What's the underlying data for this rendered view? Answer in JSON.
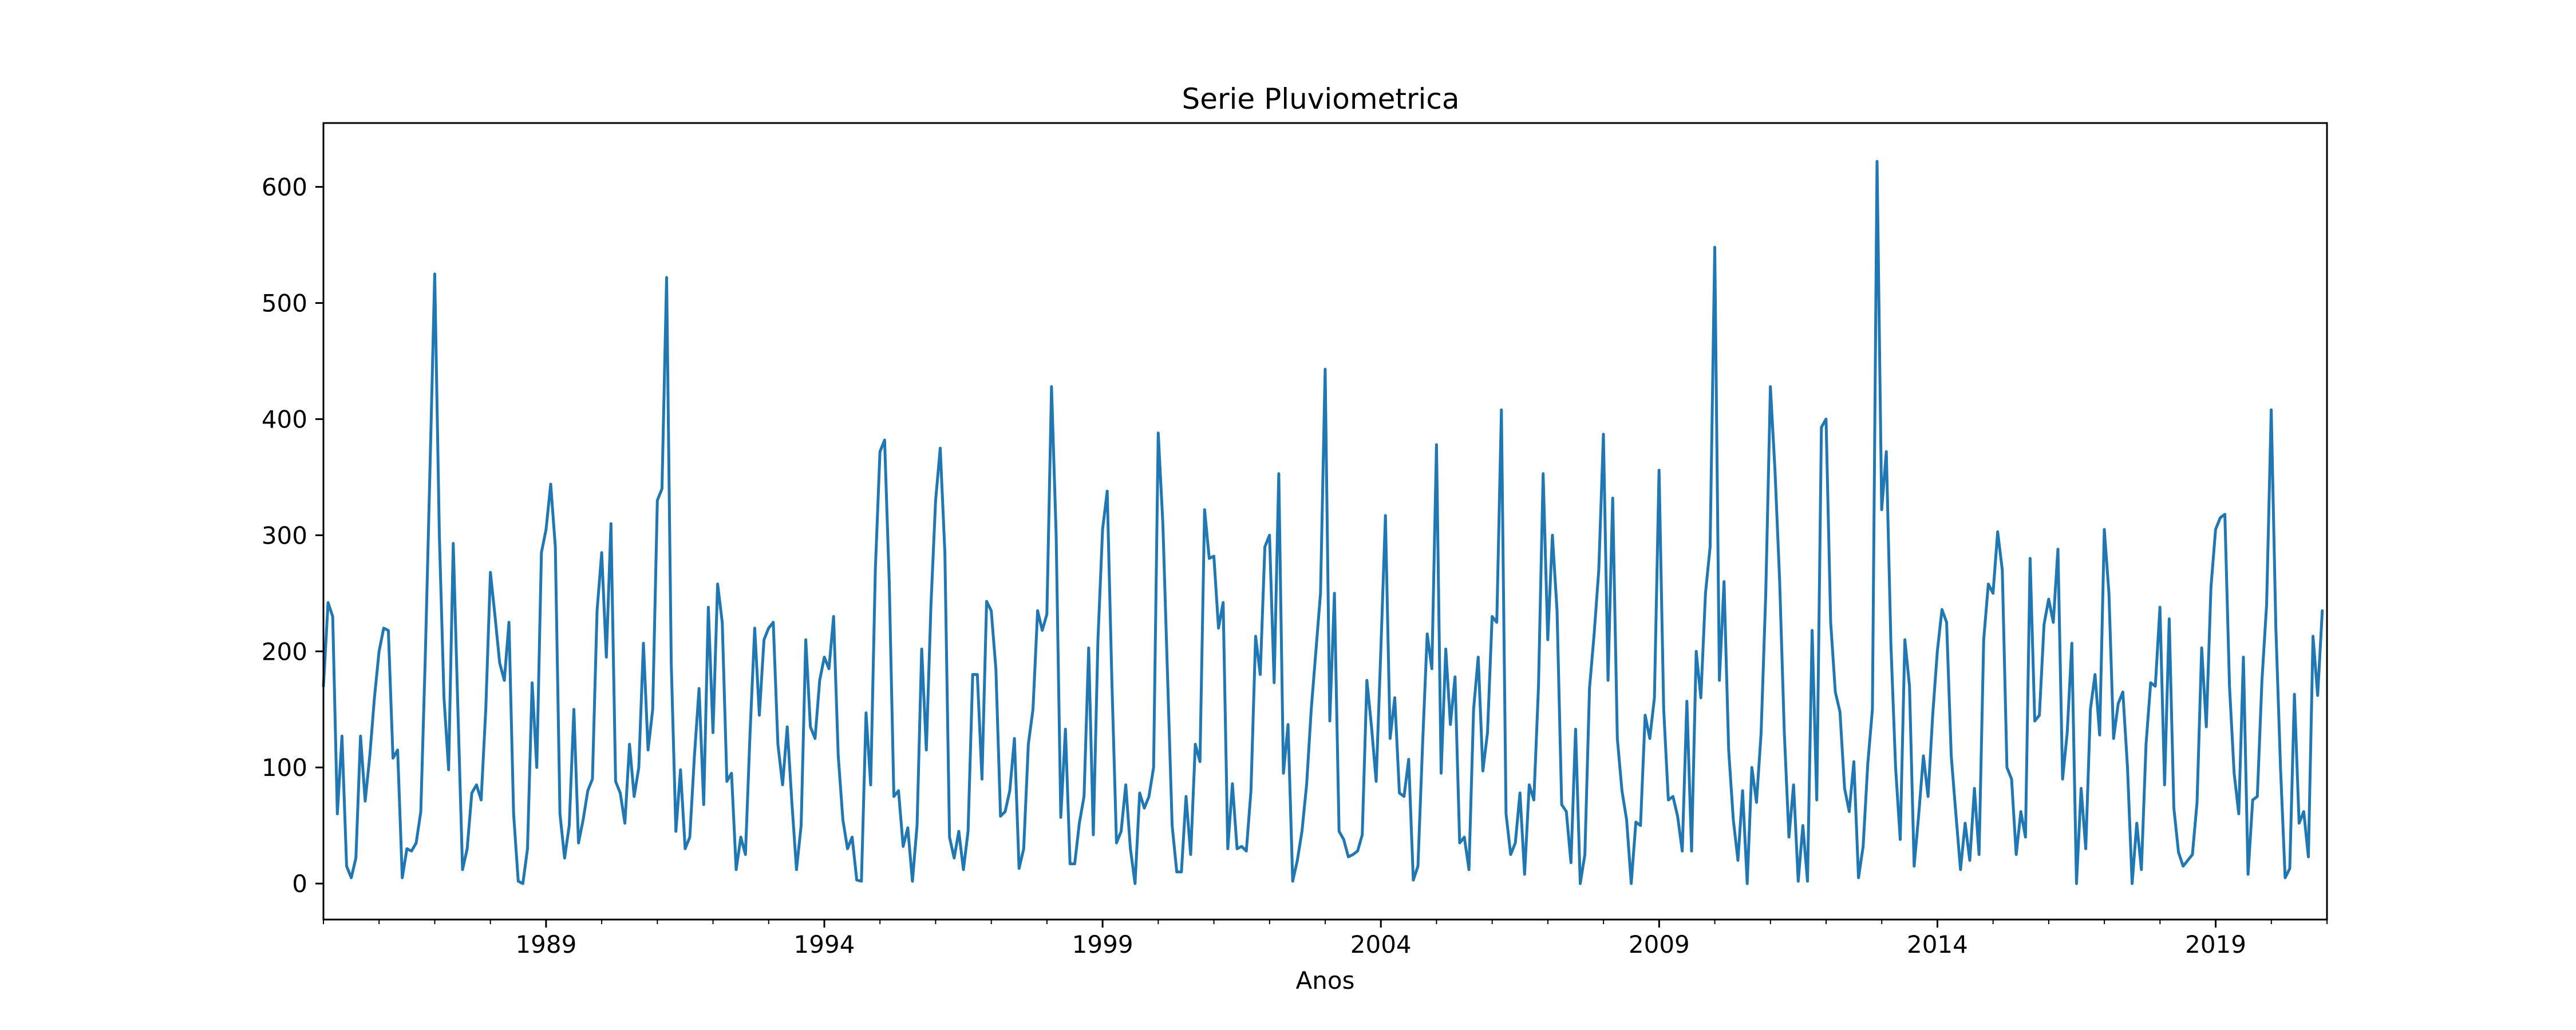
{
  "chart_data": {
    "type": "line",
    "title": "Serie Pluviometrica",
    "xlabel": "Anos",
    "ylabel": "",
    "x_range": [
      1985.0,
      2021.0
    ],
    "ylim": [
      -31,
      655
    ],
    "grid": false,
    "legend": "none",
    "x_ticks": [
      1989,
      1994,
      1999,
      2004,
      2009,
      2014,
      2019
    ],
    "x_tick_labels": [
      "1989",
      "1994",
      "1999",
      "2004",
      "2009",
      "2014",
      "2019"
    ],
    "y_ticks": [
      0,
      100,
      200,
      300,
      400,
      500,
      600
    ],
    "y_tick_labels": [
      "0",
      "100",
      "200",
      "300",
      "400",
      "500",
      "600"
    ],
    "series": [
      {
        "color": "#1f77b4",
        "x_start": 1985.0,
        "x_step_years": 0.08333,
        "values": [
          170,
          242,
          230,
          60,
          127,
          15,
          5,
          22,
          127,
          71,
          110,
          160,
          200,
          220,
          218,
          108,
          115,
          5,
          30,
          28,
          35,
          62,
          200,
          360,
          525,
          300,
          160,
          98,
          293,
          150,
          12,
          30,
          78,
          85,
          72,
          150,
          268,
          230,
          190,
          175,
          225,
          60,
          2,
          0,
          30,
          173,
          100,
          285,
          305,
          344,
          290,
          60,
          22,
          50,
          150,
          35,
          55,
          80,
          90,
          235,
          285,
          195,
          310,
          88,
          78,
          52,
          120,
          75,
          100,
          207,
          115,
          150,
          330,
          340,
          522,
          190,
          45,
          98,
          30,
          40,
          110,
          168,
          68,
          238,
          130,
          258,
          225,
          88,
          95,
          12,
          40,
          25,
          130,
          220,
          145,
          210,
          220,
          225,
          120,
          85,
          135,
          70,
          12,
          50,
          210,
          135,
          125,
          175,
          195,
          185,
          230,
          110,
          55,
          30,
          40,
          3,
          2,
          147,
          85,
          270,
          372,
          382,
          260,
          75,
          80,
          32,
          48,
          2,
          50,
          202,
          115,
          240,
          330,
          375,
          285,
          40,
          22,
          45,
          12,
          45,
          180,
          180,
          90,
          243,
          235,
          185,
          58,
          62,
          80,
          125,
          13,
          30,
          120,
          150,
          235,
          218,
          232,
          428,
          300,
          57,
          133,
          17,
          17,
          52,
          75,
          203,
          42,
          210,
          305,
          338,
          175,
          35,
          45,
          85,
          30,
          0,
          78,
          65,
          75,
          100,
          388,
          310,
          180,
          50,
          10,
          10,
          75,
          25,
          120,
          105,
          322,
          280,
          282,
          220,
          242,
          30,
          86,
          30,
          32,
          28,
          80,
          213,
          180,
          290,
          300,
          173,
          353,
          95,
          137,
          2,
          20,
          45,
          85,
          150,
          200,
          250,
          443,
          140,
          250,
          45,
          38,
          23,
          25,
          28,
          42,
          175,
          135,
          88,
          200,
          317,
          125,
          160,
          78,
          75,
          107,
          3,
          15,
          120,
          215,
          185,
          378,
          95,
          202,
          137,
          178,
          35,
          40,
          12,
          150,
          195,
          97,
          130,
          230,
          225,
          408,
          60,
          25,
          35,
          78,
          8,
          85,
          72,
          170,
          353,
          210,
          300,
          235,
          68,
          62,
          18,
          133,
          0,
          25,
          168,
          215,
          270,
          387,
          175,
          332,
          125,
          80,
          55,
          0,
          53,
          50,
          145,
          125,
          160,
          356,
          150,
          72,
          75,
          58,
          28,
          157,
          28,
          200,
          160,
          250,
          290,
          548,
          175,
          260,
          115,
          55,
          20,
          80,
          0,
          100,
          70,
          130,
          250,
          428,
          355,
          260,
          130,
          40,
          85,
          2,
          50,
          2,
          218,
          72,
          393,
          400,
          225,
          165,
          148,
          82,
          62,
          105,
          5,
          32,
          103,
          150,
          622,
          322,
          372,
          205,
          100,
          38,
          210,
          170,
          15,
          60,
          110,
          75,
          145,
          200,
          236,
          225,
          110,
          60,
          12,
          52,
          20,
          82,
          25,
          210,
          258,
          250,
          303,
          270,
          100,
          90,
          25,
          62,
          40,
          280,
          140,
          145,
          223,
          245,
          225,
          288,
          90,
          130,
          207,
          0,
          82,
          30,
          150,
          180,
          128,
          305,
          250,
          125,
          155,
          165,
          100,
          0,
          52,
          12,
          120,
          173,
          170,
          238,
          85,
          228,
          65,
          27,
          15,
          20,
          25,
          70,
          203,
          135,
          255,
          305,
          315,
          318,
          170,
          95,
          60,
          195,
          8,
          72,
          75,
          175,
          240,
          408,
          220,
          100,
          5,
          13,
          163,
          52,
          62,
          23,
          213,
          162,
          235
        ]
      }
    ]
  }
}
